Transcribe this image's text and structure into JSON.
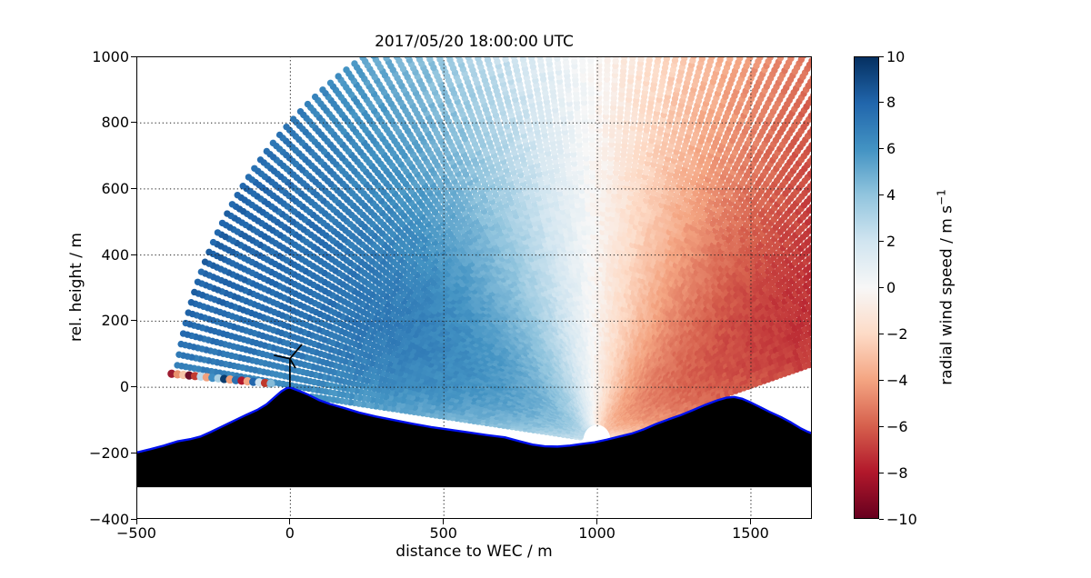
{
  "figure": {
    "background": "#ffffff"
  },
  "chart_data": {
    "type": "scatter",
    "title": "2017/05/20 18:00:00 UTC",
    "xlabel": "distance to WEC / m",
    "ylabel": "rel. height / m",
    "xlim": [
      -500,
      1700
    ],
    "ylim": [
      -400,
      1000
    ],
    "xticks": [
      -500,
      0,
      500,
      1000,
      1500
    ],
    "yticks": [
      -400,
      -200,
      0,
      200,
      400,
      600,
      800,
      1000
    ],
    "grid_x": [
      0,
      500,
      1000,
      1500
    ],
    "grid_y": [
      0,
      200,
      400,
      600,
      800
    ],
    "grid_color": "#222222",
    "colorbar": {
      "label": "radial wind speed / m s",
      "label_sup": "−1",
      "ticks": [
        10,
        8,
        6,
        4,
        2,
        0,
        -2,
        -4,
        -6,
        -8,
        -10
      ],
      "vmin": -10,
      "vmax": 10,
      "colormap": "RdBu",
      "stops": [
        "#67001f",
        "#b2182b",
        "#d6604d",
        "#f4a582",
        "#fddbc7",
        "#f7f7f7",
        "#d1e5f0",
        "#92c5de",
        "#4393c3",
        "#2166ac",
        "#053061"
      ]
    },
    "scan": {
      "origin_x": 1000,
      "origin_y": -160,
      "blind_range_m": 55,
      "max_range_m": 1390,
      "theta_min_deg": 8,
      "theta_max_deg": 172,
      "beam_step_deg": 1.35,
      "gate_step_m": 14,
      "gate_radius_px": 3.7
    },
    "wind_model": {
      "u_max": 10.2,
      "roughness_m": 8,
      "ref_height_m": 1000,
      "lidar_ground_m": -165,
      "vertical_velocity": 0.25,
      "noise_amplitude": 0.35
    },
    "terrain": {
      "fill": "#000000",
      "outline": "#0011ee",
      "outline_width": 2.4,
      "base_height": -304,
      "profile": [
        [
          -500,
          -199
        ],
        [
          -455,
          -189
        ],
        [
          -410,
          -178
        ],
        [
          -365,
          -165
        ],
        [
          -322,
          -158
        ],
        [
          -292,
          -151
        ],
        [
          -258,
          -137
        ],
        [
          -218,
          -119
        ],
        [
          -178,
          -101
        ],
        [
          -142,
          -85
        ],
        [
          -106,
          -70
        ],
        [
          -76,
          -53
        ],
        [
          -48,
          -30
        ],
        [
          -28,
          -14
        ],
        [
          -12,
          -5
        ],
        [
          0,
          -2
        ],
        [
          14,
          -7
        ],
        [
          34,
          -14
        ],
        [
          60,
          -24
        ],
        [
          94,
          -40
        ],
        [
          130,
          -52
        ],
        [
          175,
          -64
        ],
        [
          225,
          -78
        ],
        [
          280,
          -90
        ],
        [
          340,
          -101
        ],
        [
          400,
          -112
        ],
        [
          460,
          -122
        ],
        [
          520,
          -130
        ],
        [
          580,
          -138
        ],
        [
          640,
          -146
        ],
        [
          700,
          -153
        ],
        [
          748,
          -165
        ],
        [
          790,
          -175
        ],
        [
          830,
          -180
        ],
        [
          872,
          -181
        ],
        [
          912,
          -178
        ],
        [
          952,
          -173
        ],
        [
          992,
          -168
        ],
        [
          1032,
          -160
        ],
        [
          1072,
          -151
        ],
        [
          1112,
          -142
        ],
        [
          1152,
          -129
        ],
        [
          1192,
          -113
        ],
        [
          1232,
          -99
        ],
        [
          1272,
          -86
        ],
        [
          1312,
          -71
        ],
        [
          1352,
          -55
        ],
        [
          1392,
          -41
        ],
        [
          1422,
          -33
        ],
        [
          1447,
          -31
        ],
        [
          1472,
          -36
        ],
        [
          1502,
          -48
        ],
        [
          1532,
          -62
        ],
        [
          1562,
          -76
        ],
        [
          1602,
          -93
        ],
        [
          1632,
          -108
        ],
        [
          1662,
          -125
        ],
        [
          1686,
          -136
        ],
        [
          1700,
          -141
        ]
      ]
    },
    "turbine": {
      "x": 0,
      "base_z": 0,
      "tower_top_z": 83,
      "hub_z": 85,
      "color": "#000000",
      "blades": [
        [
          38,
          127
        ],
        [
          -50,
          95
        ],
        [
          17,
          58
        ]
      ]
    },
    "lidar_marker": {
      "color": "#ffffff",
      "radius_px": 13
    },
    "noisy_gates": {
      "radius_px": 4.6,
      "points": [
        [
          -385,
          39.4,
          "#9e1b30"
        ],
        [
          -366,
          37.7,
          "#e8906c"
        ],
        [
          -347,
          35.9,
          "#f6c4a8"
        ],
        [
          -328,
          34.2,
          "#70102a"
        ],
        [
          -309,
          32.4,
          "#c23d33"
        ],
        [
          -290,
          30.7,
          "#bcd9ec"
        ],
        [
          -271,
          28.9,
          "#f0a07e"
        ],
        [
          -252,
          27.2,
          "#3f8ec4"
        ],
        [
          -233,
          25.5,
          "#a8cfe3"
        ],
        [
          -214,
          23.7,
          "#0a3b6d"
        ],
        [
          -195,
          22.0,
          "#ef9d77"
        ],
        [
          -176,
          20.2,
          "#2a6fb0"
        ],
        [
          -157,
          18.5,
          "#b2182b"
        ],
        [
          -138,
          16.7,
          "#f4a582"
        ],
        [
          -119,
          15.0,
          "#2166ac"
        ],
        [
          -100,
          13.3,
          "#cfe3f0"
        ],
        [
          -81,
          11.5,
          "#c0392b"
        ],
        [
          -62,
          9.8,
          "#86bcd8"
        ]
      ]
    }
  }
}
